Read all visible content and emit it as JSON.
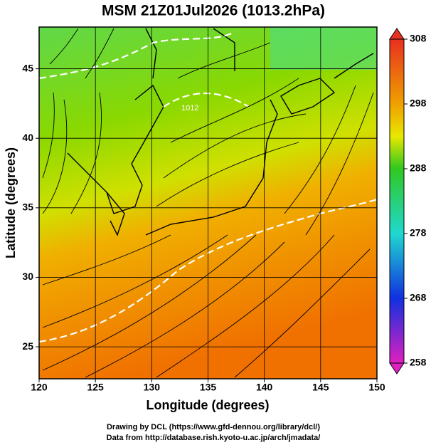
{
  "chart_data": {
    "type": "map",
    "title": "MSM 21Z01Jul2026 (1013.2hPa)",
    "xlabel": "Longitude (degrees)",
    "ylabel": "Latitude  (degrees)",
    "xlim": [
      120,
      150
    ],
    "ylim": [
      22.7,
      48.0
    ],
    "xticks": [
      120,
      125,
      130,
      135,
      140,
      145,
      150
    ],
    "yticks": [
      25,
      30,
      35,
      40,
      45
    ],
    "grid": true,
    "colorbar": {
      "lim": [
        258,
        308
      ],
      "ticks": [
        258,
        268,
        278,
        288,
        298,
        308
      ]
    },
    "contour_label": "1012",
    "footer": [
      "Drawing by DCL (https://www.gfd-dennou.org/library/dcl/)",
      "Data from http://database.rish.kyoto-u.ac.jp/arch/jmadata/"
    ]
  }
}
